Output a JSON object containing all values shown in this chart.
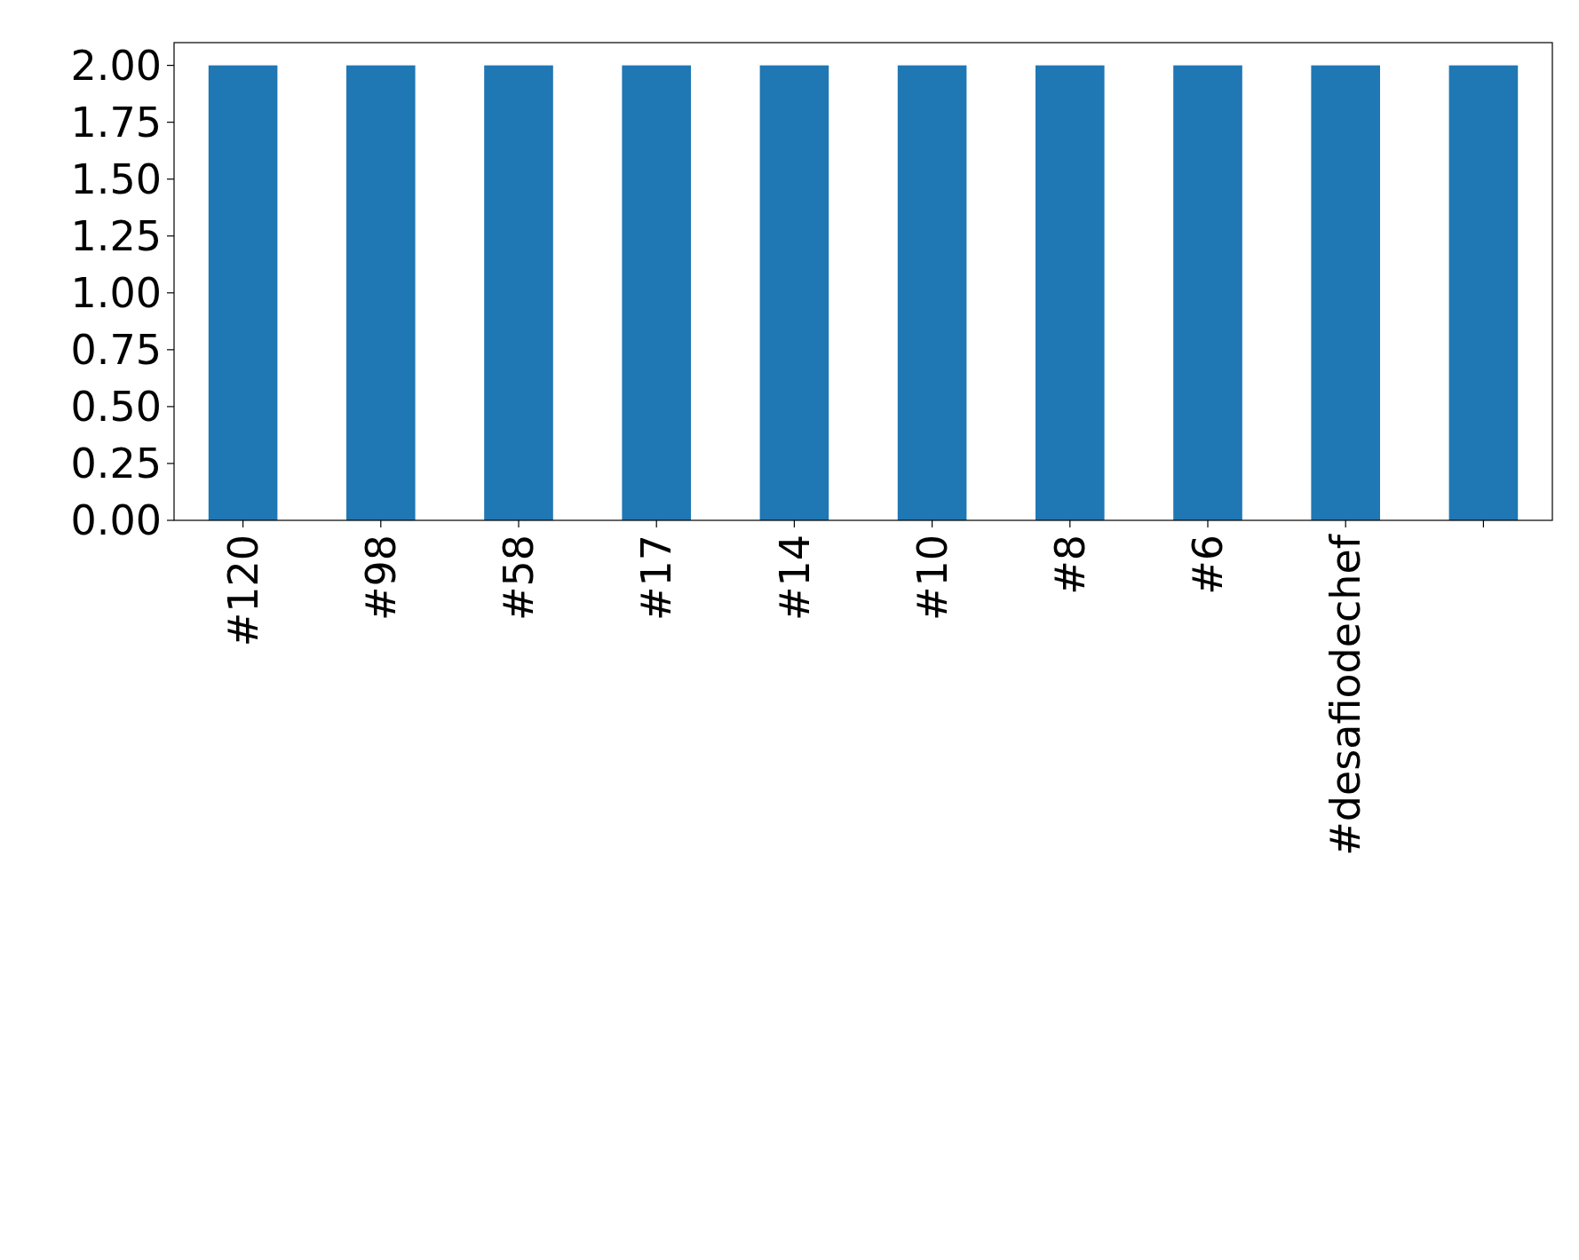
{
  "chart_data": {
    "type": "bar",
    "categories": [
      "#120",
      "#98",
      "#58",
      "#17",
      "#14",
      "#10",
      "#8",
      "#6",
      "#desafiodechef",
      null
    ],
    "values": [
      2,
      2,
      2,
      2,
      2,
      2,
      2,
      2,
      2,
      2
    ],
    "color": "#1f77b4",
    "ylim": [
      0,
      2.1
    ],
    "yticks": [
      {
        "value": 0,
        "label": "0.00"
      },
      {
        "value": 0.25,
        "label": "0.25"
      },
      {
        "value": 0.5,
        "label": "0.50"
      },
      {
        "value": 0.75,
        "label": "0.75"
      },
      {
        "value": 1,
        "label": "1.00"
      },
      {
        "value": 1.25,
        "label": "1.25"
      },
      {
        "value": 1.5,
        "label": "1.50"
      },
      {
        "value": 1.75,
        "label": "1.75"
      },
      {
        "value": 2,
        "label": "2.00"
      }
    ],
    "grid": false
  }
}
